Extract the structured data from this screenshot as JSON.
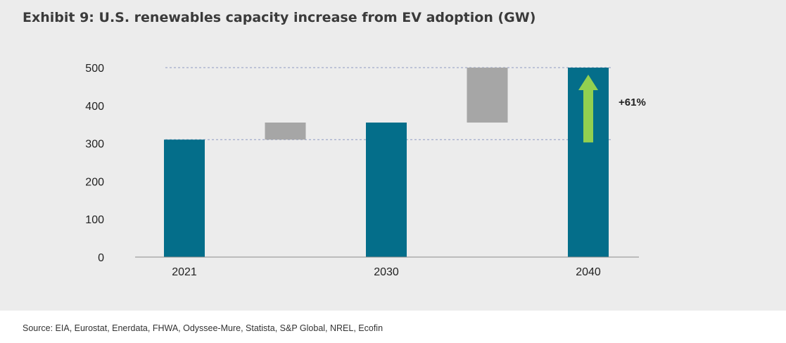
{
  "title": "Exhibit 9: U.S. renewables capacity increase from EV adoption (GW)",
  "source": "Source: EIA, Eurostat, Enerdata, FHWA, Odyssee-Mure, Statista, S&P Global, NREL, Ecofin",
  "colors": {
    "total_bar": "#046e8a",
    "increment_bar": "#a6a6a6",
    "arrow": "#92d050",
    "reference_line": "#8e9ac2",
    "axis": "#8c8c8c",
    "panel_bg": "#ececec"
  },
  "chart_data": {
    "type": "bar",
    "subtype": "waterfall",
    "title": "Exhibit 9: U.S. renewables capacity increase from EV adoption (GW)",
    "xlabel": "",
    "ylabel": "",
    "ylim": [
      0,
      500
    ],
    "yticks": [
      0,
      100,
      200,
      300,
      400,
      500
    ],
    "grid": false,
    "categories": [
      "2021",
      "",
      "2030",
      "",
      "2040"
    ],
    "bars": [
      {
        "label": "2021",
        "kind": "total",
        "start": 0,
        "end": 310
      },
      {
        "label": "",
        "kind": "increment",
        "start": 310,
        "end": 355
      },
      {
        "label": "2030",
        "kind": "total",
        "start": 0,
        "end": 355
      },
      {
        "label": "",
        "kind": "increment",
        "start": 355,
        "end": 500
      },
      {
        "label": "2040",
        "kind": "total",
        "start": 0,
        "end": 500
      }
    ],
    "reference_lines": [
      500,
      310
    ],
    "annotation": {
      "text": "+61%",
      "from": 310,
      "to": 500,
      "category_index": 4
    }
  }
}
